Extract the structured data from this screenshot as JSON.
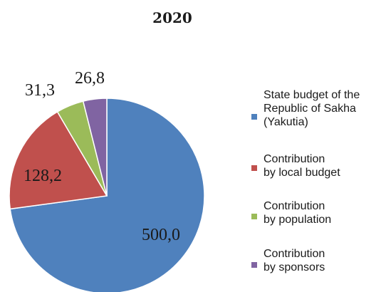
{
  "chart_data": {
    "type": "pie",
    "title": "2020",
    "legend_position": "right",
    "start_angle_deg": 0,
    "direction": "clockwise",
    "slices": [
      {
        "label": "State budget of the Republic of Sakha (Yakutia)",
        "legend_lines": [
          "State budget of the",
          "Republic of Sakha",
          "(Yakutia)"
        ],
        "value": 500.0,
        "display": "500,0",
        "color": "#4f81bd"
      },
      {
        "label": "Contribution by local budget",
        "legend_lines": [
          "Contribution",
          "by local budget"
        ],
        "value": 128.2,
        "display": "128,2",
        "color": "#c0504d"
      },
      {
        "label": "Contribution by population",
        "legend_lines": [
          "Contribution",
          "by population"
        ],
        "value": 31.3,
        "display": "31,3",
        "color": "#9bbb59"
      },
      {
        "label": "Contribution by sponsors",
        "legend_lines": [
          "Contribution",
          "by sponsors"
        ],
        "value": 26.8,
        "display": "26,8",
        "color": "#8064a2"
      }
    ]
  }
}
